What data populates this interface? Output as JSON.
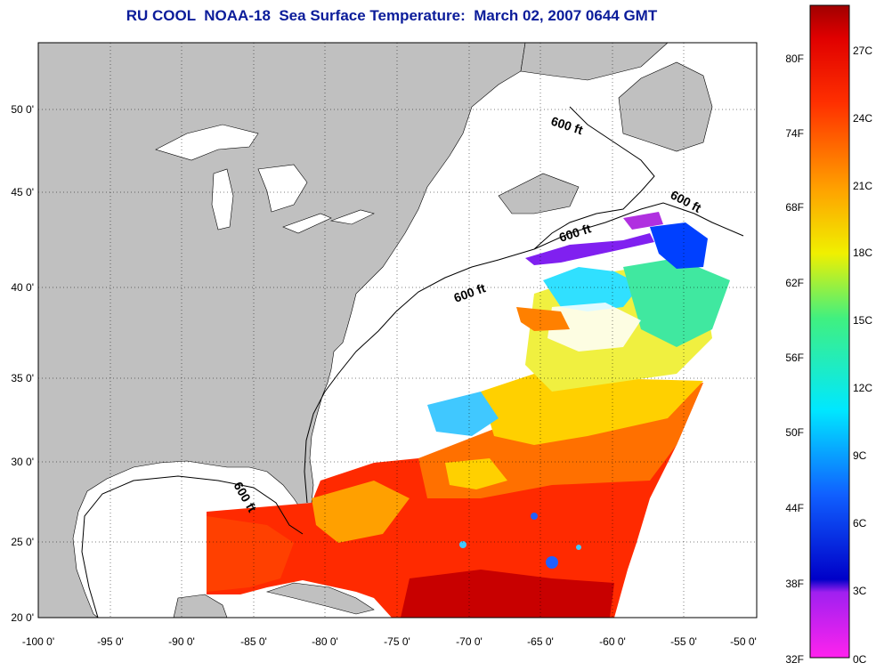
{
  "title": "RU COOL  NOAA-18  Sea Surface Temperature:  March 02, 2007 0644 GMT",
  "longitude_ticks": [
    "-100 0'",
    "-95 0'",
    "-90 0'",
    "-85 0'",
    "-80 0'",
    "-75 0'",
    "-70 0'",
    "-65 0'",
    "-60 0'",
    "-55 0'",
    "-50 0'"
  ],
  "latitude_ticks": [
    "50 0'",
    "45 0'",
    "40 0'",
    "35 0'",
    "30 0'",
    "25 0'",
    "20 0'"
  ],
  "isobath_label": "600 ft",
  "colorbar": {
    "fahrenheit_ticks": [
      "80F",
      "74F",
      "68F",
      "62F",
      "56F",
      "50F",
      "44F",
      "38F",
      "32F"
    ],
    "celsius_ticks": [
      "27C",
      "24C",
      "21C",
      "18C",
      "15C",
      "12C",
      "9C",
      "6C",
      "3C",
      "0C"
    ]
  },
  "colors": {
    "land": "#c0c0c0",
    "title": "#0b1c9a",
    "cloud": "#ffffff"
  }
}
